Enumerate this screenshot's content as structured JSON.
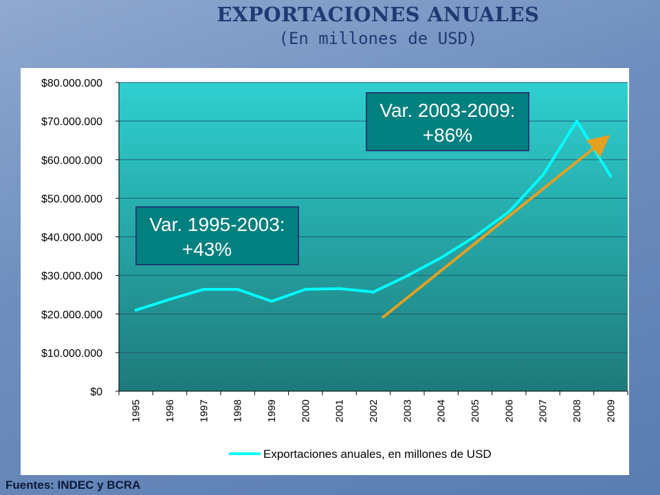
{
  "slide": {
    "title": "EXPORTACIONES ANUALES",
    "subtitle": "(En millones de USD)",
    "footer": "Fuentes: INDEC y BCRA"
  },
  "callouts": [
    {
      "line1": "Var. 1995-2003:",
      "line2": "+43%"
    },
    {
      "line1": "Var. 2003-2009:",
      "line2": "+86%"
    }
  ],
  "chart_data": {
    "type": "line",
    "title": "",
    "xlabel": "",
    "ylabel": "",
    "categories": [
      "1995",
      "1996",
      "1997",
      "1998",
      "1999",
      "2000",
      "2001",
      "2002",
      "2003",
      "2004",
      "2005",
      "2006",
      "2007",
      "2008",
      "2009"
    ],
    "series": [
      {
        "name": "Exportaciones anuales, en millones de USD",
        "color": "#00ffff",
        "values": [
          21000000,
          23800000,
          26400000,
          26400000,
          23300000,
          26400000,
          26600000,
          25700000,
          29900000,
          34600000,
          40100000,
          46500000,
          56000000,
          70000000,
          55700000
        ]
      }
    ],
    "trend_arrow": {
      "color": "#e6a020",
      "from_year": "2002",
      "from_value": 19000000,
      "to_year": "2009",
      "to_value": 65500000
    },
    "ylim": [
      0,
      80000000
    ],
    "y_ticks": [
      "$80.000.000",
      "$70.000.000",
      "$60.000.000",
      "$50.000.000",
      "$40.000.000",
      "$30.000.000",
      "$20.000.000",
      "$10.000.000",
      "$0"
    ],
    "y_tick_values": [
      80000000,
      70000000,
      60000000,
      50000000,
      40000000,
      30000000,
      20000000,
      10000000,
      0
    ],
    "grid": true,
    "legend": "bottom",
    "plot_colors": {
      "top": "#2fd0d0",
      "bottom": "#1e7a7a",
      "grid": "#1e5f6f"
    }
  }
}
